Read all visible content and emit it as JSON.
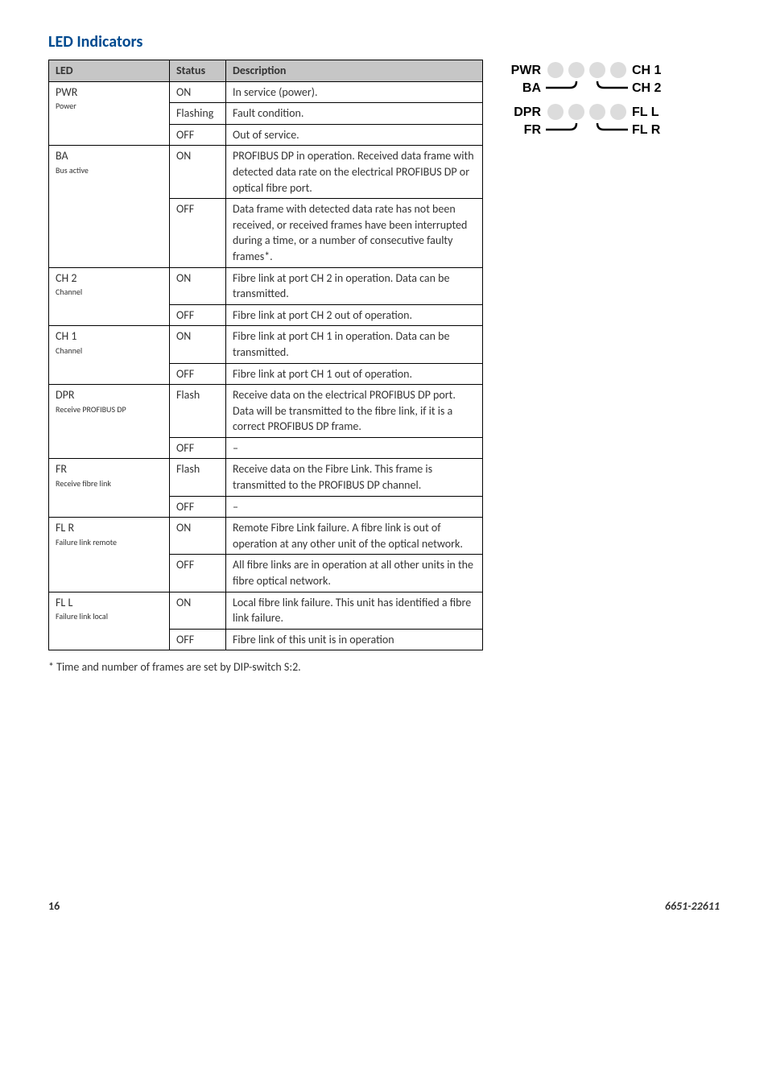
{
  "title": "LED Indicators",
  "title_color": "#004a8f",
  "table": {
    "headers": [
      "LED",
      "Status",
      "Description"
    ],
    "groups": [
      {
        "led": "PWR",
        "sub": "Power",
        "rows": [
          {
            "status": "ON",
            "desc": "In service (power)."
          },
          {
            "status": "Flashing",
            "desc": "Fault condition."
          },
          {
            "status": "OFF",
            "desc": "Out of service."
          }
        ]
      },
      {
        "led": "BA",
        "sub": "Bus active",
        "rows": [
          {
            "status": "ON",
            "desc": "PROFIBUS DP in operation. Received data frame with detected data rate on the electrical PROFIBUS DP or optical fibre port."
          },
          {
            "status": "OFF",
            "desc": "Data frame with detected data rate has not been received, or received frames have been interrupted during a time, or a number of consecutive faulty frames*."
          }
        ]
      },
      {
        "led": "CH 2",
        "sub": "Channel",
        "rows": [
          {
            "status": "ON",
            "desc": "Fibre link at port CH 2 in operation. Data can be transmitted."
          },
          {
            "status": "OFF",
            "desc": "Fibre link at port CH 2 out of operation."
          }
        ]
      },
      {
        "led": "CH 1",
        "sub": "Channel",
        "rows": [
          {
            "status": "ON",
            "desc": "Fibre link at port CH 1 in operation. Data can be transmitted."
          },
          {
            "status": "OFF",
            "desc": "Fibre link at port CH 1 out of operation."
          }
        ]
      },
      {
        "led": "DPR",
        "sub": "Receive PROFIBUS DP",
        "rows": [
          {
            "status": "Flash",
            "desc": "Receive data on the electrical PROFIBUS DP port. Data will be transmitted to the fibre link, if it is a correct PROFIBUS DP frame."
          },
          {
            "status": "OFF",
            "desc": "–"
          }
        ]
      },
      {
        "led": "FR",
        "sub": "Receive fibre link",
        "rows": [
          {
            "status": "Flash",
            "desc": "Receive data on the Fibre Link. This frame is transmitted to the PROFIBUS DP channel."
          },
          {
            "status": "OFF",
            "desc": "–"
          }
        ]
      },
      {
        "led": "FL R",
        "sub": "Failure link remote",
        "rows": [
          {
            "status": "ON",
            "desc": "Remote Fibre Link failure. A fibre link is out of operation at any other unit of the optical network."
          },
          {
            "status": "OFF",
            "desc": "All fibre links are in operation at all other units in the fibre optical network."
          }
        ]
      },
      {
        "led": "FL L",
        "sub": "Failure link local",
        "rows": [
          {
            "status": "ON",
            "desc": "Local fibre link failure. This unit has identified a fibre link failure."
          },
          {
            "status": "OFF",
            "desc": "Fibre link of this unit is in operation"
          }
        ]
      }
    ]
  },
  "footnote": "* Time and number of frames are set by DIP-switch S:2.",
  "diagram": {
    "circle_color": "#dcdcdc",
    "left_labels": [
      "PWR",
      "BA",
      "DPR",
      "FR"
    ],
    "right_labels": [
      "CH 1",
      "CH 2",
      "FL L",
      "FL R"
    ]
  },
  "footer": {
    "page": "16",
    "docnum": "6651-22611"
  }
}
